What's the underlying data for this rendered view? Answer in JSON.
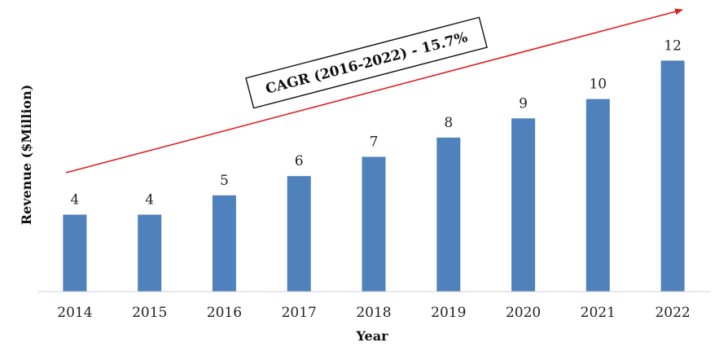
{
  "chart_data": {
    "type": "bar",
    "categories": [
      "2014",
      "2015",
      "2016",
      "2017",
      "2018",
      "2019",
      "2020",
      "2021",
      "2022"
    ],
    "values": [
      4,
      4,
      5,
      6,
      7,
      8,
      9,
      10,
      12
    ],
    "xlabel": "Year",
    "ylabel": "Revenue ($Million)",
    "ylim": [
      0,
      13.2
    ],
    "grid": false,
    "bar_color": "#4F81BD",
    "annotation": {
      "text": "CAGR (2016-2022) - 15.7%",
      "arrow_color": "#E02020"
    }
  }
}
